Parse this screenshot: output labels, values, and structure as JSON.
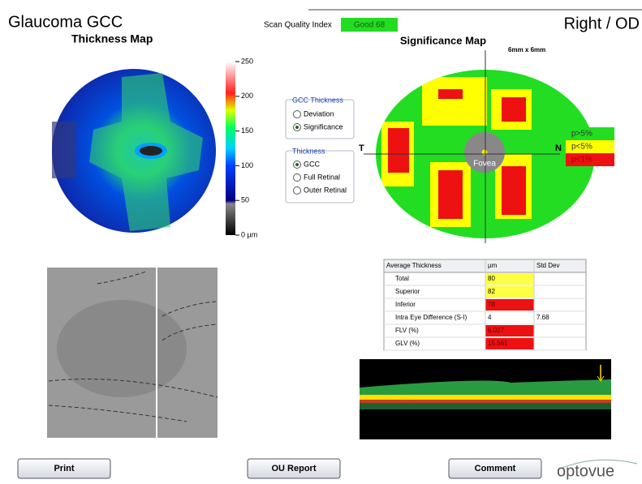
{
  "header": {
    "title": "Glaucoma GCC",
    "scan_quality_label": "Scan Quality Index",
    "scan_quality_value": "Good 68",
    "eye": "Right / OD"
  },
  "thickness_map": {
    "title": "Thickness Map",
    "scale_labels": [
      "250",
      "200",
      "150",
      "100",
      "50",
      "0 µm"
    ]
  },
  "options": {
    "gcc_thickness": {
      "title": "GCC Thickness",
      "items": [
        "Deviation",
        "Significance"
      ]
    },
    "thickness": {
      "title": "Thickness",
      "items": [
        "GCC",
        "Full Retinal",
        "Outer Retinal"
      ]
    }
  },
  "significance_map": {
    "title": "Significance Map",
    "size": "6mm x 6mm",
    "temporal": "T",
    "nasal": "N",
    "fovea": "Fovea",
    "legend": [
      "p>5%",
      "p<5%",
      "p<1%"
    ]
  },
  "table": {
    "header": [
      "Average Thickness",
      "µm",
      "Std Dev"
    ],
    "rows": [
      [
        "Total",
        "80",
        ""
      ],
      [
        "Superior",
        "82",
        ""
      ],
      [
        "Inferior",
        "78",
        ""
      ],
      [
        "Intra Eye Difference (S-I)",
        "4",
        "7.68"
      ],
      [
        "FLV (%)",
        "6.027",
        ""
      ],
      [
        "GLV (%)",
        "15.561",
        ""
      ]
    ]
  },
  "buttons": [
    "Print",
    "OU Report",
    "Comment"
  ],
  "logo": "optovue"
}
